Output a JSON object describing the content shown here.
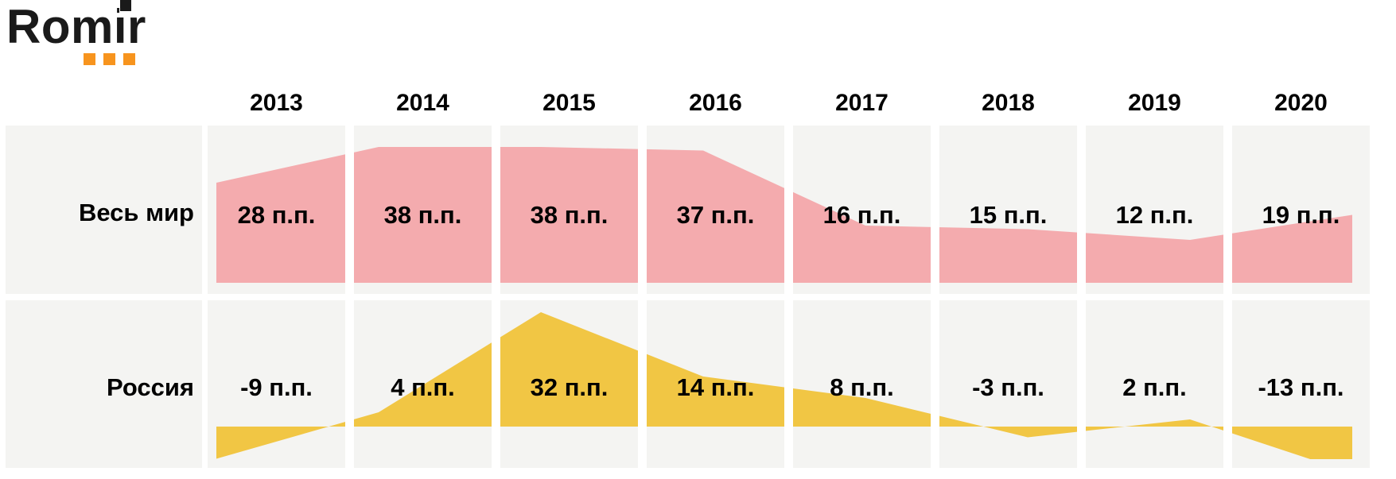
{
  "logo": {
    "text": "Romir",
    "text_color": "#1a1a1a",
    "accent_color": "#F7941E",
    "accent_squares": 3
  },
  "chart_data": {
    "type": "area",
    "categories": [
      "2013",
      "2014",
      "2015",
      "2016",
      "2017",
      "2018",
      "2019",
      "2020"
    ],
    "series": [
      {
        "name": "Весь мир",
        "values": [
          28,
          38,
          38,
          37,
          16,
          15,
          12,
          19
        ],
        "labels": [
          "28 п.п.",
          "38 п.п.",
          "38 п.п.",
          "37 п.п.",
          "16 п.п.",
          "15 п.п.",
          "12 п.п.",
          "19 п.п."
        ],
        "fill_color": "#F4ABAE"
      },
      {
        "name": "Россия",
        "values": [
          -9,
          4,
          32,
          14,
          8,
          -3,
          2,
          -13
        ],
        "labels": [
          "-9 п.п.",
          "4 п.п.",
          "32 п.п.",
          "14 п.п.",
          "8 п.п.",
          "-3 п.п.",
          "2 п.п.",
          "-13 п.п."
        ],
        "fill_color": "#F1C644"
      }
    ],
    "value_suffix": "п.п.",
    "cell_background": "#F4F4F2",
    "baseline": 0,
    "grid": "off",
    "legend_position": "none"
  }
}
